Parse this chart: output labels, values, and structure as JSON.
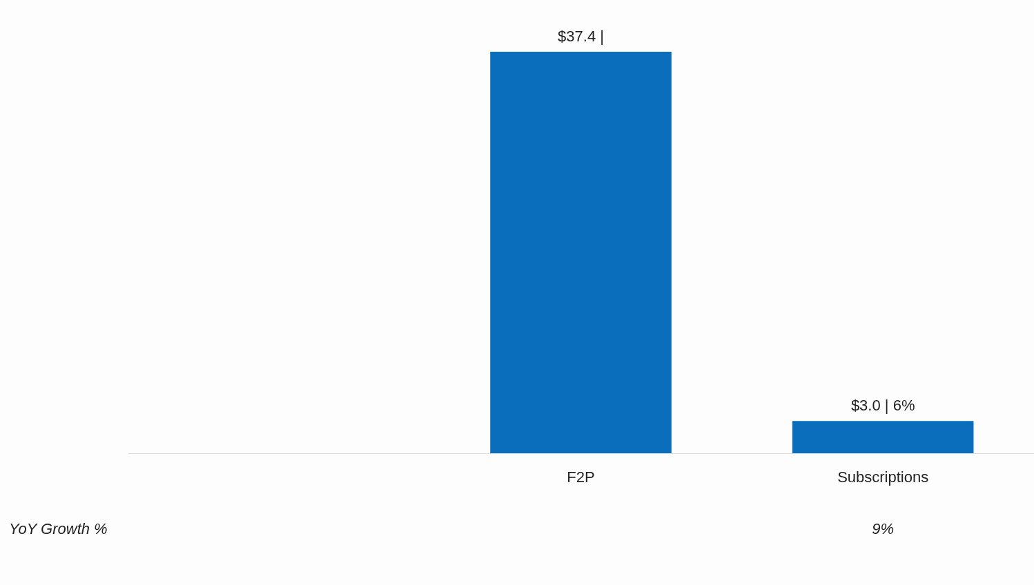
{
  "chart_data": {
    "type": "bar",
    "categories": [
      null,
      "F2P",
      "Subscriptions"
    ],
    "values": [
      null,
      37.4,
      3.0
    ],
    "color": "#0a6ebd",
    "value_labels": [
      null,
      "$37.4 |",
      "$3.0 | 6%"
    ],
    "annotations": [
      "YoY Growth %",
      "9%"
    ],
    "grid": false
  }
}
